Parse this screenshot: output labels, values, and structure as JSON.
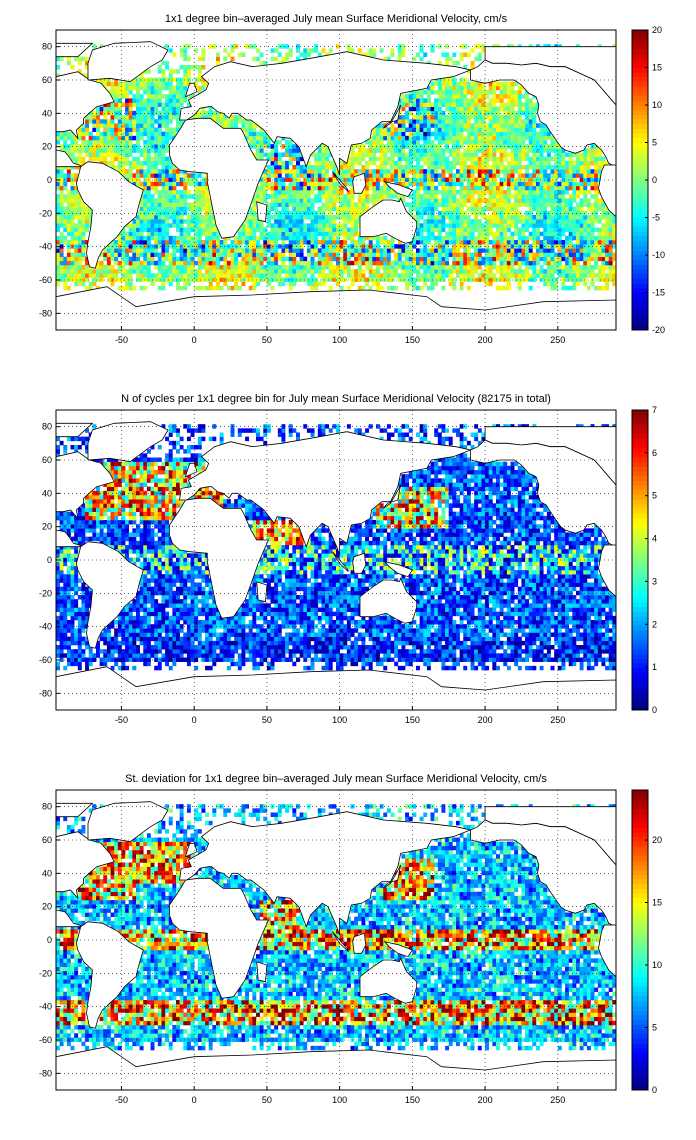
{
  "chart_data": [
    {
      "type": "heatmap",
      "title": "1x1 degree bin–averaged July mean Surface Meridional Velocity, cm/s",
      "xlim": [
        -95,
        290
      ],
      "ylim": [
        -90,
        90
      ],
      "xticks": [
        -50,
        0,
        50,
        100,
        150,
        200,
        250
      ],
      "yticks": [
        -80,
        -60,
        -40,
        -20,
        0,
        20,
        40,
        60,
        80
      ],
      "colorbar": {
        "range": [
          -20,
          20
        ],
        "ticks": [
          -20,
          -15,
          -10,
          -5,
          0,
          5,
          10,
          15,
          20
        ],
        "colormap": "jet"
      },
      "pattern": "velocity",
      "grid": true
    },
    {
      "type": "heatmap",
      "title": "N of cycles per 1x1 degree bin for July mean Surface Meridional Velocity (82175 in total)",
      "xlim": [
        -95,
        290
      ],
      "ylim": [
        -90,
        90
      ],
      "xticks": [
        -50,
        0,
        50,
        100,
        150,
        200,
        250
      ],
      "yticks": [
        -80,
        -60,
        -40,
        -20,
        0,
        20,
        40,
        60,
        80
      ],
      "colorbar": {
        "range": [
          0,
          7
        ],
        "ticks": [
          0,
          1,
          2,
          3,
          4,
          5,
          6,
          7
        ],
        "colormap": "jet"
      },
      "pattern": "count",
      "grid": true
    },
    {
      "type": "heatmap",
      "title": "St. deviation for 1x1 degree bin–averaged July mean Surface Meridional Velocity, cm/s",
      "xlim": [
        -95,
        290
      ],
      "ylim": [
        -90,
        90
      ],
      "xticks": [
        -50,
        0,
        50,
        100,
        150,
        200,
        250
      ],
      "yticks": [
        -80,
        -60,
        -40,
        -20,
        0,
        20,
        40,
        60,
        80
      ],
      "colorbar": {
        "range": [
          0,
          24
        ],
        "ticks": [
          0,
          5,
          10,
          15,
          20
        ],
        "colormap": "jet"
      },
      "pattern": "stdev",
      "grid": true
    }
  ]
}
